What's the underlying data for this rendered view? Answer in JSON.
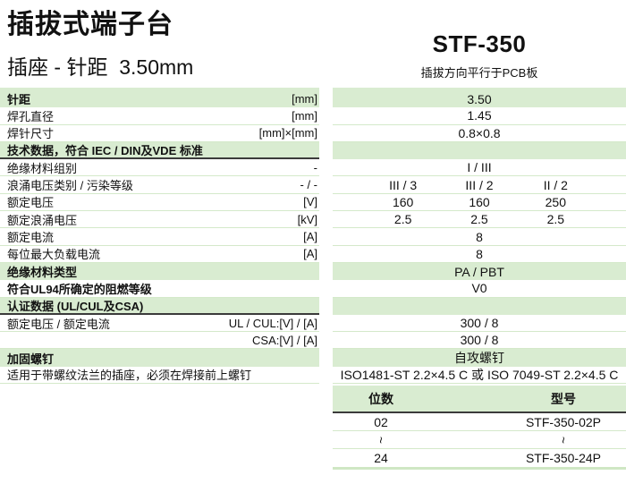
{
  "page": {
    "title": "插拔式端子台",
    "subtitle": "插座 - 针距  3.50mm"
  },
  "model": {
    "name": "STF-350",
    "note": "插拔方向平行于PCB板"
  },
  "colors": {
    "row_green": "#d9ecd1",
    "separator_green": "#d4e9ca",
    "dark_line": "#3b3b3b",
    "text": "#111111"
  },
  "spec": {
    "rows": [
      {
        "label": "针距",
        "unit": "[mm]",
        "value": "3.50"
      },
      {
        "label": "焊孔直径",
        "unit": "[mm]",
        "value": "1.45"
      },
      {
        "label": "焊针尺寸",
        "unit": "[mm]×[mm]",
        "value": "0.8×0.8"
      },
      {
        "label": "技术数据，符合 IEC / DIN及VDE 标准",
        "unit": "",
        "value": ""
      },
      {
        "label": "绝缘材料组别",
        "unit": "-",
        "value": "I / III"
      },
      {
        "label": "浪涌电压类别 / 污染等级",
        "unit": "- / -",
        "values": [
          "III / 3",
          "III / 2",
          "II / 2"
        ]
      },
      {
        "label": "额定电压",
        "unit": "[V]",
        "values": [
          "160",
          "160",
          "250"
        ]
      },
      {
        "label": "额定浪涌电压",
        "unit": "[kV]",
        "values": [
          "2.5",
          "2.5",
          "2.5"
        ]
      },
      {
        "label": "额定电流",
        "unit": "[A]",
        "value": "8"
      },
      {
        "label": "每位最大负载电流",
        "unit": "[A]",
        "value": "8"
      },
      {
        "label": "绝缘材料类型",
        "unit": "",
        "value": "PA / PBT"
      },
      {
        "label": "符合UL94所确定的阻燃等级",
        "unit": "",
        "value": "V0"
      },
      {
        "label": "认证数据 (UL/CUL及CSA)",
        "unit": "",
        "value": ""
      },
      {
        "label": "额定电压 / 额定电流",
        "unit": "UL / CUL:[V] / [A]",
        "value": "300 / 8"
      },
      {
        "label": "",
        "unit": "CSA:[V] / [A]",
        "value": "300 / 8"
      },
      {
        "label": "加固螺钉",
        "unit": "",
        "value": "自攻螺钉"
      },
      {
        "label": "适用于带螺纹法兰的插座，必须在焊接前上螺钉",
        "unit": "",
        "value": "ISO1481-ST 2.2×4.5 C 或 ISO 7049-ST 2.2×4.5 C"
      }
    ]
  },
  "model_table": {
    "headers": [
      "位数",
      "型号"
    ],
    "rows": [
      {
        "positions": "02",
        "part": "STF-350-02P"
      },
      {
        "positions": "~",
        "part": "~"
      },
      {
        "positions": "24",
        "part": "STF-350-24P"
      }
    ]
  }
}
